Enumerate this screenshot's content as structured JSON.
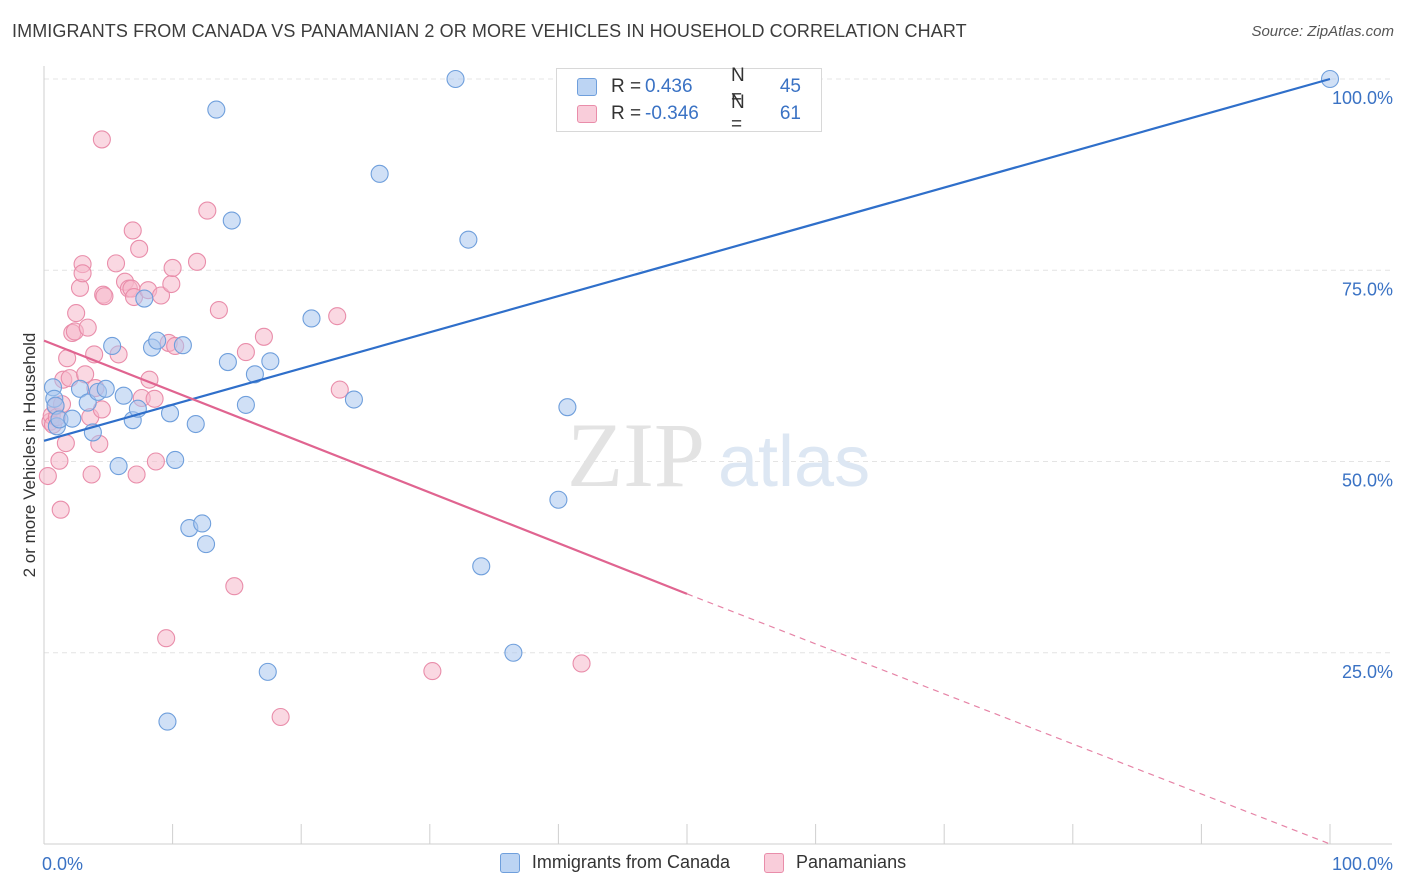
{
  "header": {
    "title": "IMMIGRANTS FROM CANADA VS PANAMANIAN 2 OR MORE VEHICLES IN HOUSEHOLD CORRELATION CHART",
    "source": "Source: ZipAtlas.com"
  },
  "watermark": {
    "zip": "ZIP",
    "atlas": "atlas"
  },
  "legend": {
    "rows": [
      {
        "r_label": "R =",
        "r_value": "0.436",
        "n_label": "N =",
        "n_value": "45",
        "color": "#a9c7ef"
      },
      {
        "r_label": "R =",
        "r_value": "-0.346",
        "n_label": "N =",
        "n_value": "61",
        "color": "#f5b8cb"
      }
    ]
  },
  "chart_data": {
    "type": "scatter",
    "title": "IMMIGRANTS FROM CANADA VS PANAMANIAN 2 OR MORE VEHICLES IN HOUSEHOLD CORRELATION CHART",
    "xlabel": "",
    "ylabel": "2 or more Vehicles in Household",
    "xlim": [
      0,
      100
    ],
    "ylim": [
      0,
      102
    ],
    "x_tick_labels": [
      "0.0%",
      "100.0%"
    ],
    "y_ticks": [
      25,
      50,
      75,
      100
    ],
    "y_tick_labels": [
      "25.0%",
      "50.0%",
      "75.0%",
      "100.0%"
    ],
    "grid": true,
    "legend_position": "bottom",
    "series": [
      {
        "name": "Immigrants from Canada",
        "color": "#a9c7ef",
        "stroke": "#6f9fdc",
        "line_color": "#2f6fca",
        "trend": {
          "x": [
            0,
            100
          ],
          "y": [
            52.7,
            100
          ]
        },
        "points": [
          [
            0.7,
            59.7
          ],
          [
            0.8,
            58.2
          ],
          [
            0.9,
            57.3
          ],
          [
            1.0,
            54.6
          ],
          [
            1.2,
            55.5
          ],
          [
            2.2,
            55.6
          ],
          [
            2.8,
            59.5
          ],
          [
            3.4,
            57.7
          ],
          [
            3.8,
            53.8
          ],
          [
            4.2,
            59.1
          ],
          [
            4.8,
            59.5
          ],
          [
            5.3,
            65.1
          ],
          [
            5.8,
            49.4
          ],
          [
            6.2,
            58.6
          ],
          [
            6.9,
            55.4
          ],
          [
            7.3,
            56.9
          ],
          [
            7.8,
            71.3
          ],
          [
            8.4,
            64.9
          ],
          [
            8.8,
            65.8
          ],
          [
            9.6,
            16.0
          ],
          [
            9.8,
            56.3
          ],
          [
            10.2,
            50.2
          ],
          [
            10.8,
            65.2
          ],
          [
            11.3,
            41.3
          ],
          [
            11.8,
            54.9
          ],
          [
            12.3,
            41.9
          ],
          [
            12.6,
            39.2
          ],
          [
            13.4,
            96.0
          ],
          [
            14.3,
            63.0
          ],
          [
            14.6,
            81.5
          ],
          [
            15.7,
            57.4
          ],
          [
            16.4,
            61.4
          ],
          [
            17.4,
            22.5
          ],
          [
            17.6,
            63.1
          ],
          [
            20.8,
            68.7
          ],
          [
            24.1,
            58.1
          ],
          [
            26.1,
            87.6
          ],
          [
            32.0,
            100.0
          ],
          [
            33.0,
            79.0
          ],
          [
            34.0,
            36.3
          ],
          [
            36.5,
            25.0
          ],
          [
            40.0,
            45.0
          ],
          [
            40.7,
            57.1
          ],
          [
            47.0,
            100.0
          ],
          [
            100.0,
            100.0
          ]
        ]
      },
      {
        "name": "Panamanians",
        "color": "#f5b8cb",
        "stroke": "#e98daa",
        "line_color": "#e06490",
        "trend": {
          "x": [
            0,
            50
          ],
          "y": [
            65.8,
            32.7
          ]
        },
        "trend_dashed": {
          "x": [
            50,
            100
          ],
          "y": [
            32.7,
            0
          ]
        },
        "points": [
          [
            0.3,
            48.1
          ],
          [
            0.5,
            55.2
          ],
          [
            0.6,
            56.0
          ],
          [
            0.7,
            54.8
          ],
          [
            0.9,
            57.2
          ],
          [
            1.0,
            55.8
          ],
          [
            1.2,
            50.1
          ],
          [
            1.3,
            43.7
          ],
          [
            1.4,
            57.5
          ],
          [
            1.5,
            60.7
          ],
          [
            1.7,
            52.4
          ],
          [
            1.8,
            63.5
          ],
          [
            2.0,
            60.9
          ],
          [
            2.2,
            66.8
          ],
          [
            2.4,
            67.0
          ],
          [
            2.5,
            69.4
          ],
          [
            2.8,
            72.7
          ],
          [
            3.0,
            75.8
          ],
          [
            3.0,
            74.6
          ],
          [
            3.2,
            61.4
          ],
          [
            3.4,
            67.5
          ],
          [
            3.6,
            55.8
          ],
          [
            3.7,
            48.3
          ],
          [
            3.9,
            64.0
          ],
          [
            4.0,
            59.6
          ],
          [
            4.3,
            52.3
          ],
          [
            4.5,
            56.8
          ],
          [
            4.5,
            92.1
          ],
          [
            4.6,
            71.8
          ],
          [
            4.7,
            71.6
          ],
          [
            5.6,
            75.9
          ],
          [
            5.8,
            64.0
          ],
          [
            6.3,
            73.5
          ],
          [
            6.6,
            72.6
          ],
          [
            6.8,
            72.6
          ],
          [
            6.9,
            80.2
          ],
          [
            7.0,
            71.5
          ],
          [
            7.2,
            48.3
          ],
          [
            7.4,
            77.8
          ],
          [
            7.6,
            58.3
          ],
          [
            8.1,
            72.4
          ],
          [
            8.2,
            60.7
          ],
          [
            8.6,
            58.2
          ],
          [
            8.7,
            50.0
          ],
          [
            9.1,
            71.7
          ],
          [
            9.5,
            26.9
          ],
          [
            9.7,
            65.5
          ],
          [
            9.9,
            73.2
          ],
          [
            10.0,
            75.3
          ],
          [
            10.2,
            65.1
          ],
          [
            11.9,
            76.1
          ],
          [
            12.7,
            82.8
          ],
          [
            13.6,
            69.8
          ],
          [
            14.8,
            33.7
          ],
          [
            15.7,
            64.3
          ],
          [
            17.1,
            66.3
          ],
          [
            18.4,
            16.6
          ],
          [
            22.8,
            69.0
          ],
          [
            23.0,
            59.4
          ],
          [
            30.2,
            22.6
          ],
          [
            41.8,
            23.6
          ]
        ]
      }
    ]
  }
}
